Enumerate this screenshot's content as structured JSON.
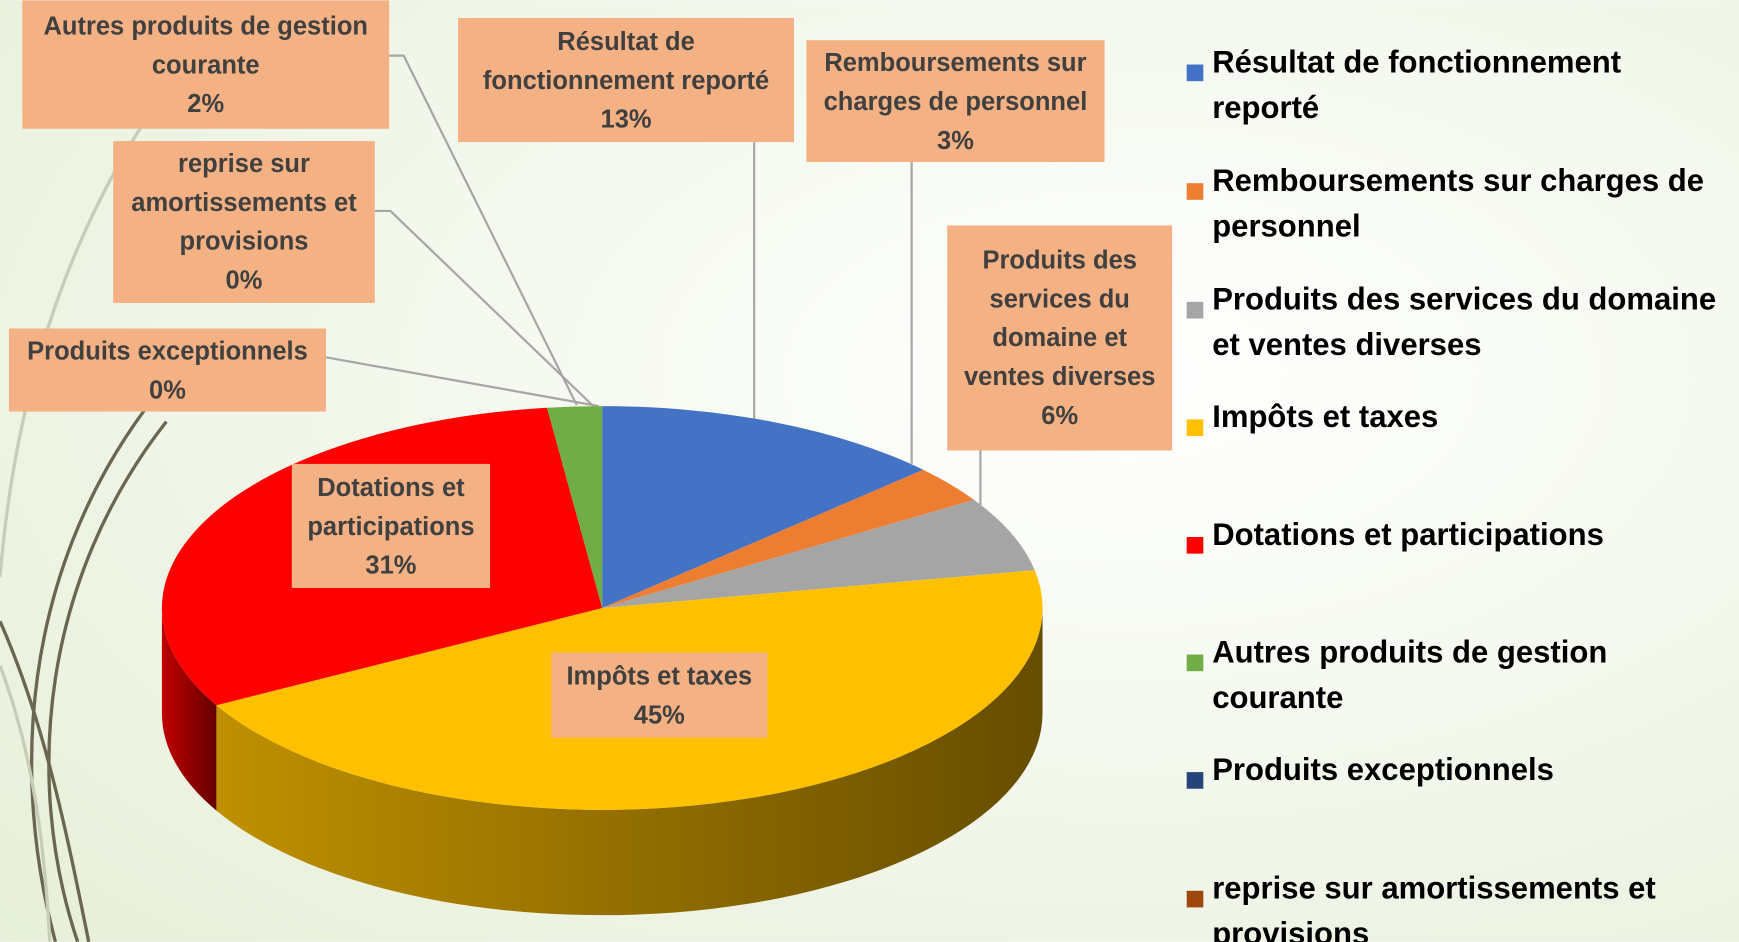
{
  "chart_data": {
    "type": "pie3d",
    "categories": [
      "Résultat de fonctionnement reporté",
      "Remboursements sur charges de personnel",
      "Produits des services du domaine et ventes diverses",
      "Impôts et taxes",
      "Dotations et participations",
      "Autres produits de gestion courante",
      "Produits exceptionnels",
      "reprise sur amortissements et provisions"
    ],
    "values": [
      13,
      3,
      6,
      45,
      31,
      2,
      0,
      0
    ],
    "value_labels": [
      "13%",
      "3%",
      "6%",
      "45%",
      "31%",
      "2%",
      "0%",
      "0%"
    ],
    "colors": [
      "#4472c4",
      "#ed7d31",
      "#a5a5a5",
      "#ffc000",
      "#ff0000",
      "#70ad47",
      "#264478",
      "#9e480e"
    ],
    "legend": "right"
  }
}
